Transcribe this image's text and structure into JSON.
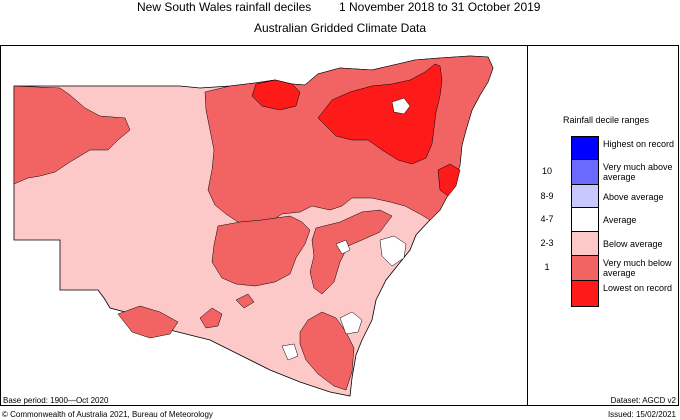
{
  "title": {
    "main_left": "New South Wales rainfall deciles",
    "main_right": "1 November 2018 to 31 October 2019",
    "subtitle": "Australian Gridded Climate Data"
  },
  "legend": {
    "title": "Rainfall decile ranges",
    "items": [
      {
        "code": "",
        "label": "Highest on record",
        "color": "#0000ff"
      },
      {
        "code": "10",
        "label": "Very much above average",
        "color": "#6a6aff"
      },
      {
        "code": "8-9",
        "label": "Above average",
        "color": "#c8c8ff"
      },
      {
        "code": "4-7",
        "label": "Average",
        "color": "#ffffff"
      },
      {
        "code": "2-3",
        "label": "Below average",
        "color": "#fdc8c8"
      },
      {
        "code": "1",
        "label": "Very much below average",
        "color": "#f26464"
      },
      {
        "code": "",
        "label": "Lowest on record",
        "color": "#ff1a1a"
      }
    ]
  },
  "footer": {
    "base_period": "Base period: 1900—Oct 2020",
    "dataset": "Dataset: AGCD v2",
    "copyright": "© Commonwealth of Australia 2021, Bureau of Meteorology",
    "issued": "Issued: 15/02/2021"
  }
}
